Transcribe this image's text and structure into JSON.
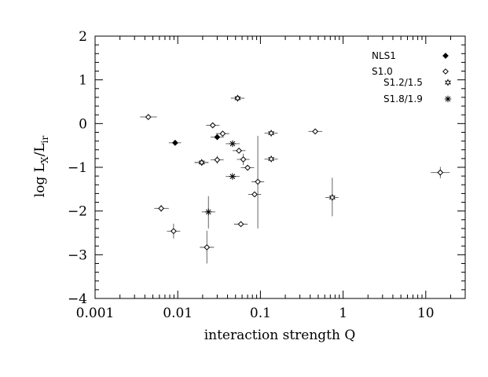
{
  "chart_data": {
    "type": "scatter",
    "x_scale": "log",
    "xlim": [
      0.001,
      30
    ],
    "ylim": [
      -4,
      2
    ],
    "xlabel": "interaction strength Q",
    "ylabel_main": "log  L",
    "ylabel_sub1": "X",
    "ylabel_slash": "/L",
    "ylabel_sub2": "ir",
    "x_ticks": [
      {
        "value": 0.001,
        "label": "0.001"
      },
      {
        "value": 0.01,
        "label": "0.01"
      },
      {
        "value": 0.1,
        "label": "0.1"
      },
      {
        "value": 1,
        "label": "1"
      },
      {
        "value": 10,
        "label": "10"
      }
    ],
    "y_ticks": [
      {
        "value": 2,
        "label": "2"
      },
      {
        "value": 1,
        "label": "1"
      },
      {
        "value": 0,
        "label": "0"
      },
      {
        "value": -1,
        "label": "−1"
      },
      {
        "value": -2,
        "label": "−2"
      },
      {
        "value": -3,
        "label": "−3"
      },
      {
        "value": -4,
        "label": "−4"
      }
    ],
    "legend_position": "top-right",
    "series": [
      {
        "name": "NLS1",
        "marker": "filled-diamond",
        "points": [
          {
            "x": 0.0093,
            "y": -0.44,
            "xlo": 0.0078,
            "xhi": 0.011,
            "ylo": -0.44,
            "yhi": -0.44
          },
          {
            "x": 0.03,
            "y": -0.31,
            "xlo": 0.025,
            "xhi": 0.036,
            "ylo": -0.31,
            "yhi": -0.31
          }
        ]
      },
      {
        "name": "S1.0",
        "marker": "open-diamond",
        "points": [
          {
            "x": 0.0044,
            "y": 0.15,
            "xlo": 0.0035,
            "xhi": 0.0056,
            "ylo": 0.15,
            "yhi": 0.15
          },
          {
            "x": 0.0063,
            "y": -1.94,
            "xlo": 0.0052,
            "xhi": 0.0078,
            "ylo": -2.02,
            "yhi": -1.86
          },
          {
            "x": 0.0089,
            "y": -2.46,
            "xlo": 0.0074,
            "xhi": 0.0107,
            "ylo": -2.63,
            "yhi": -2.29
          },
          {
            "x": 0.0195,
            "y": -0.89,
            "xlo": 0.016,
            "xhi": 0.0235,
            "ylo": -0.95,
            "yhi": -0.83
          },
          {
            "x": 0.0225,
            "y": -2.83,
            "xlo": 0.0185,
            "xhi": 0.0275,
            "ylo": -3.2,
            "yhi": -2.45
          },
          {
            "x": 0.0265,
            "y": -0.04,
            "xlo": 0.022,
            "xhi": 0.032,
            "ylo": -0.04,
            "yhi": -0.04
          },
          {
            "x": 0.03,
            "y": -0.83,
            "xlo": 0.025,
            "xhi": 0.036,
            "ylo": -0.92,
            "yhi": -0.74
          },
          {
            "x": 0.035,
            "y": -0.23,
            "xlo": 0.029,
            "xhi": 0.042,
            "ylo": -0.23,
            "yhi": -0.23
          },
          {
            "x": 0.053,
            "y": 0.58,
            "xlo": 0.044,
            "xhi": 0.064,
            "ylo": 0.58,
            "yhi": 0.58
          },
          {
            "x": 0.055,
            "y": -0.62,
            "xlo": 0.046,
            "xhi": 0.066,
            "ylo": -0.62,
            "yhi": -0.62
          },
          {
            "x": 0.058,
            "y": -2.3,
            "xlo": 0.048,
            "xhi": 0.07,
            "ylo": -2.3,
            "yhi": -2.3
          },
          {
            "x": 0.062,
            "y": -0.82,
            "xlo": 0.052,
            "xhi": 0.074,
            "ylo": -0.95,
            "yhi": -0.69
          },
          {
            "x": 0.07,
            "y": -1.01,
            "xlo": 0.058,
            "xhi": 0.084,
            "ylo": -1.01,
            "yhi": -1.01
          },
          {
            "x": 0.085,
            "y": -1.62,
            "xlo": 0.071,
            "xhi": 0.102,
            "ylo": -1.62,
            "yhi": -1.62
          },
          {
            "x": 0.093,
            "y": -1.33,
            "xlo": 0.078,
            "xhi": 0.111,
            "ylo": -2.4,
            "yhi": -0.28
          },
          {
            "x": 0.46,
            "y": -0.18,
            "xlo": 0.38,
            "xhi": 0.56,
            "ylo": -0.18,
            "yhi": -0.18
          },
          {
            "x": 15.0,
            "y": -1.12,
            "xlo": 11.5,
            "xhi": 19.5,
            "ylo": -1.25,
            "yhi": -0.99
          }
        ]
      },
      {
        "name": "S1.2/1.5",
        "marker": "open-star",
        "points": [
          {
            "x": 0.0195,
            "y": -0.89,
            "xlo": 0.016,
            "xhi": 0.0235,
            "ylo": -0.89,
            "yhi": -0.89
          },
          {
            "x": 0.053,
            "y": 0.58,
            "xlo": 0.044,
            "xhi": 0.064,
            "ylo": 0.58,
            "yhi": 0.58
          },
          {
            "x": 0.135,
            "y": -0.22,
            "xlo": 0.112,
            "xhi": 0.162,
            "ylo": -0.22,
            "yhi": -0.22
          },
          {
            "x": 0.135,
            "y": -0.81,
            "xlo": 0.112,
            "xhi": 0.162,
            "ylo": -0.81,
            "yhi": -0.81
          },
          {
            "x": 0.74,
            "y": -1.69,
            "xlo": 0.61,
            "xhi": 0.88,
            "ylo": -2.12,
            "yhi": -1.24
          }
        ]
      },
      {
        "name": "S1.8/1.9",
        "marker": "asterisk",
        "points": [
          {
            "x": 0.0235,
            "y": -2.02,
            "xlo": 0.0195,
            "xhi": 0.0285,
            "ylo": -2.4,
            "yhi": -1.66
          },
          {
            "x": 0.046,
            "y": -0.46,
            "xlo": 0.038,
            "xhi": 0.056,
            "ylo": -0.46,
            "yhi": -0.46
          },
          {
            "x": 0.046,
            "y": -1.21,
            "xlo": 0.038,
            "xhi": 0.056,
            "ylo": -1.21,
            "yhi": -1.21
          }
        ]
      }
    ]
  }
}
